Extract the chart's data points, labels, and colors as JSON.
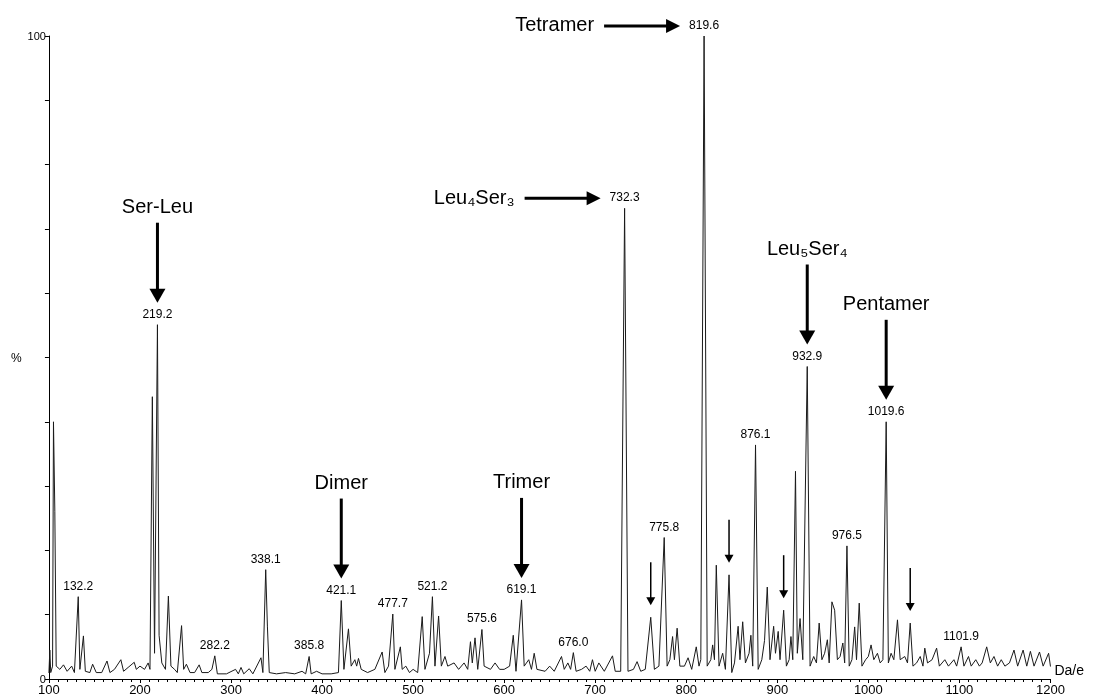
{
  "chart_data": {
    "type": "line",
    "xlabel": "Da/e",
    "ylabel": "%",
    "marker": "none",
    "xlim": [
      100,
      1200
    ],
    "xticks": [
      100,
      200,
      300,
      400,
      500,
      600,
      700,
      800,
      900,
      1000,
      1100,
      1200
    ],
    "ylim": [
      0,
      100
    ],
    "yticks": [
      0,
      {
        "value": 10,
        "label": null
      },
      {
        "value": 20,
        "label": null
      },
      {
        "value": 30,
        "label": null
      },
      {
        "value": 40,
        "label": null
      },
      {
        "value": 50,
        "label": null
      },
      {
        "value": 60,
        "label": null
      },
      {
        "value": 70,
        "label": null
      },
      {
        "value": 80,
        "label": null
      },
      {
        "value": 90,
        "label": null
      },
      100
    ],
    "x": [
      100,
      101,
      102,
      104,
      105,
      106.5,
      108,
      112,
      116,
      120,
      125,
      128,
      132.2,
      134,
      137.9,
      140,
      145,
      148,
      152,
      158,
      163.8,
      167,
      172,
      179,
      182,
      187,
      193.7,
      196,
      200,
      205,
      209,
      211,
      213.6,
      216,
      219.2,
      221,
      224,
      228,
      231.2,
      234,
      238,
      241,
      245.7,
      248,
      251,
      255,
      260,
      265,
      268,
      275,
      279,
      282.2,
      285,
      295,
      305,
      308,
      311,
      314,
      320,
      324,
      332.9,
      335,
      338.1,
      340,
      342,
      350,
      360,
      370,
      378,
      382,
      385.8,
      388,
      394,
      400,
      410,
      418,
      421.1,
      424,
      429,
      432,
      436,
      438,
      440,
      443,
      450,
      458,
      466,
      469,
      473,
      477.7,
      480,
      486,
      488,
      492,
      496,
      500,
      505,
      510,
      513,
      518,
      521.2,
      524,
      528,
      531,
      535,
      538,
      545,
      550,
      556,
      560,
      563,
      565,
      568,
      571,
      575.6,
      578,
      585,
      590,
      595,
      600,
      606,
      610,
      613,
      619.1,
      622,
      627,
      630,
      633,
      636,
      645,
      650,
      655,
      663,
      666,
      670,
      673,
      676,
      679,
      685,
      690,
      694,
      697,
      700,
      704,
      710,
      719,
      722,
      728,
      732.3,
      736,
      742,
      746,
      750,
      755,
      761,
      765,
      770,
      775.8,
      779,
      782,
      785,
      787,
      790,
      793,
      798,
      802,
      806,
      811,
      814,
      816,
      819.6,
      823,
      827,
      829,
      831,
      833,
      836,
      840,
      843,
      847,
      850,
      853,
      857,
      859,
      862,
      865,
      869,
      871,
      873,
      876.1,
      879,
      883,
      886,
      889,
      892,
      896,
      898,
      901,
      903,
      907,
      910,
      913,
      915,
      917,
      920,
      922,
      925,
      928,
      932.9,
      936,
      940,
      943,
      946,
      949,
      952,
      955,
      957,
      960,
      963,
      966,
      969,
      972,
      974,
      976.5,
      979,
      982,
      985,
      987,
      990,
      993,
      997,
      1000,
      1003,
      1006,
      1010,
      1013,
      1016,
      1019.6,
      1022,
      1025,
      1028,
      1032,
      1035,
      1040,
      1043,
      1046,
      1049,
      1053,
      1057,
      1060,
      1062,
      1065,
      1070,
      1075,
      1078,
      1084,
      1088,
      1094,
      1097,
      1101.9,
      1105,
      1110,
      1113,
      1118,
      1122,
      1125,
      1130,
      1134,
      1138,
      1142,
      1146,
      1150,
      1155,
      1160,
      1164,
      1170,
      1174,
      1178,
      1182,
      1188,
      1192,
      1198,
      1200
    ],
    "series": [
      {
        "color": "#1a1a1a",
        "values": [
          1,
          4.5,
          1,
          2,
          40,
          26,
          2,
          1.5,
          2.2,
          1.2,
          2,
          1,
          12.8,
          1.5,
          6.7,
          1.2,
          1,
          2.3,
          1,
          1,
          2.8,
          1,
          1.5,
          3,
          1.2,
          1.8,
          2.6,
          1.5,
          2,
          1.5,
          2.5,
          1.5,
          43.9,
          4,
          55.1,
          6.8,
          2.5,
          1.5,
          12.9,
          2,
          1.5,
          1,
          8.3,
          1.5,
          2.3,
          1,
          1,
          2.2,
          1,
          1,
          1.5,
          3.6,
          0.8,
          0.8,
          1.5,
          0.8,
          1.8,
          0.8,
          1.6,
          0.8,
          3.3,
          1,
          17,
          8.1,
          1,
          0.8,
          1,
          0.8,
          1.2,
          0.8,
          3.5,
          0.8,
          1.2,
          0.8,
          0.8,
          1,
          12.2,
          1.5,
          7.8,
          2,
          3,
          2,
          3.2,
          1.5,
          1,
          1.5,
          4.2,
          1,
          2,
          10.1,
          1.5,
          5,
          1.5,
          2,
          1,
          1.5,
          1,
          9.7,
          1.5,
          4,
          12.8,
          2,
          9.8,
          2,
          3.5,
          2,
          2.5,
          1.5,
          2.5,
          1.5,
          5.8,
          2.5,
          6.4,
          1.5,
          7.7,
          2,
          1.5,
          2.5,
          1.5,
          1.5,
          2,
          6.8,
          1.2,
          12.3,
          2,
          3,
          1.5,
          4,
          1.5,
          1.2,
          2,
          1.2,
          3.5,
          1.5,
          2.5,
          1.5,
          4.1,
          1.2,
          1.5,
          2,
          1.2,
          3,
          1.2,
          2.5,
          1.2,
          3.6,
          1.2,
          1.2,
          73.2,
          1.2,
          1.5,
          2.7,
          1.2,
          1.5,
          9.6,
          1.5,
          2,
          22,
          2,
          3,
          6.6,
          3,
          7.9,
          2,
          2,
          3.3,
          1.5,
          5,
          2,
          3,
          100,
          2,
          3,
          5.3,
          3,
          17.7,
          2,
          4,
          1.5,
          16.2,
          1,
          2.5,
          8.2,
          3,
          8.9,
          2.5,
          4,
          6.8,
          2,
          36.4,
          1.5,
          3,
          6,
          14.3,
          3,
          8.2,
          4,
          7.4,
          3,
          10.7,
          2,
          3,
          6.6,
          3,
          32.3,
          4,
          9.4,
          3,
          48.6,
          2,
          3.5,
          2.5,
          8.7,
          3,
          4,
          6.1,
          2.5,
          12,
          10.7,
          3,
          3.5,
          5.6,
          2.5,
          20.7,
          2,
          3,
          8.1,
          3,
          11.8,
          2,
          3,
          3.5,
          5.3,
          3,
          4,
          2.5,
          3,
          40,
          2.5,
          4,
          3,
          9.2,
          3,
          3.5,
          2.5,
          8.7,
          2,
          2.5,
          3.5,
          2,
          4.8,
          2.5,
          3,
          4.8,
          2,
          3,
          2,
          3,
          2,
          5,
          2,
          3.5,
          2,
          3,
          2,
          2.5,
          5,
          2.5,
          3.5,
          2,
          3,
          2,
          2.5,
          4.5,
          2,
          4.5,
          2,
          4.3,
          2,
          4.2,
          2,
          4,
          2
        ]
      }
    ],
    "annotations": [
      {
        "text": "132.2",
        "x": 132.2,
        "y": 12.8
      },
      {
        "text": "219.2",
        "x": 219.2,
        "y": 55.1
      },
      {
        "text": "282.2",
        "x": 282.2,
        "y": 3.6
      },
      {
        "text": "338.1",
        "x": 338.1,
        "y": 17
      },
      {
        "text": "385.8",
        "x": 385.8,
        "y": 3.5
      },
      {
        "text": "421.1",
        "x": 421.1,
        "y": 12.2
      },
      {
        "text": "477.7",
        "x": 477.7,
        "y": 10.1
      },
      {
        "text": "521.2",
        "x": 521.2,
        "y": 12.8
      },
      {
        "text": "575.6",
        "x": 575.6,
        "y": 7.7
      },
      {
        "text": "619.1",
        "x": 619.1,
        "y": 12.3
      },
      {
        "text": "676.0",
        "x": 676,
        "y": 4.1
      },
      {
        "text": "732.3",
        "x": 732.3,
        "y": 73.2
      },
      {
        "text": "775.8",
        "x": 775.8,
        "y": 22
      },
      {
        "text": "819.6",
        "x": 819.6,
        "y": 100
      },
      {
        "text": "876.1",
        "x": 876.1,
        "y": 36.4
      },
      {
        "text": "932.9",
        "x": 932.9,
        "y": 48.6
      },
      {
        "text": "976.5",
        "x": 976.5,
        "y": 20.7
      },
      {
        "text": "1019.6",
        "x": 1019.6,
        "y": 40
      },
      {
        "text": "1101.9",
        "x": 1101.9,
        "y": 5
      },
      "Ser-Leu",
      "Dimer",
      "Trimer",
      "Leu₄Ser₃",
      "Tetramer",
      "Leu₅Ser₄",
      "Pentamer"
    ]
  }
}
